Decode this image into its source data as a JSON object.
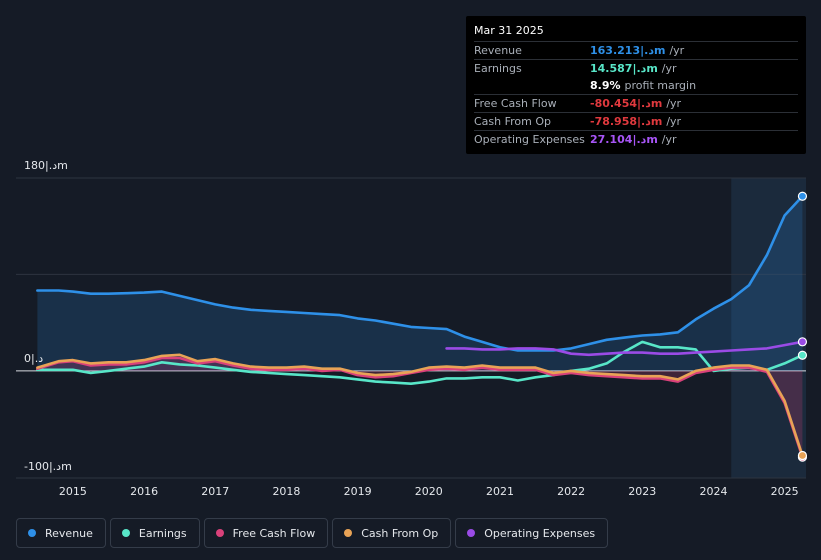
{
  "tooltip": {
    "date": "Mar 31 2025",
    "rows": [
      {
        "label": "Revenue",
        "value": "163.213|.دm",
        "unit": "/yr",
        "color": "#2e90e8"
      },
      {
        "label": "Earnings",
        "value": "14.587|.دm",
        "unit": "/yr",
        "color": "#58e6c8"
      },
      {
        "label": "",
        "value": "8.9%",
        "unit": "profit margin",
        "color": "#ffffff"
      },
      {
        "label": "Free Cash Flow",
        "value": "-80.454|.دm",
        "unit": "/yr",
        "color": "#e0393e"
      },
      {
        "label": "Cash From Op",
        "value": "-78.958|.دm",
        "unit": "/yr",
        "color": "#e0393e"
      },
      {
        "label": "Operating Expenses",
        "value": "27.104|.دm",
        "unit": "/yr",
        "color": "#a855f7"
      }
    ]
  },
  "axis": {
    "y_top": "180|.دm",
    "y_zero": "0|.د",
    "y_bottom": "-100|.دm"
  },
  "legend": [
    {
      "label": "Revenue",
      "color": "#2e90e8"
    },
    {
      "label": "Earnings",
      "color": "#58e6c8"
    },
    {
      "label": "Free Cash Flow",
      "color": "#d9417a"
    },
    {
      "label": "Cash From Op",
      "color": "#e8a356"
    },
    {
      "label": "Operating Expenses",
      "color": "#9a4be6"
    }
  ],
  "chart_data": {
    "type": "line",
    "title": "",
    "units": "|.دm",
    "ylim": [
      -100,
      180
    ],
    "xlim": [
      2014.2,
      2025.3
    ],
    "x_ticks": [
      2015,
      2016,
      2017,
      2018,
      2019,
      2020,
      2021,
      2022,
      2023,
      2024,
      2025
    ],
    "x_tick_labels": [
      "2015",
      "2016",
      "2017",
      "2018",
      "2019",
      "2020",
      "2021",
      "2022",
      "2023",
      "2024",
      "2025"
    ],
    "forecast_start": 2024.25,
    "series": [
      {
        "name": "Revenue",
        "color": "#2e90e8",
        "fill": true,
        "x": [
          2014.5,
          2014.8,
          2015.0,
          2015.25,
          2015.5,
          2015.75,
          2016.0,
          2016.25,
          2016.5,
          2016.75,
          2017.0,
          2017.25,
          2017.5,
          2017.75,
          2018.0,
          2018.25,
          2018.5,
          2018.75,
          2019.0,
          2019.25,
          2019.5,
          2019.75,
          2020.0,
          2020.25,
          2020.5,
          2020.75,
          2021.0,
          2021.25,
          2021.5,
          2021.75,
          2022.0,
          2022.25,
          2022.5,
          2022.75,
          2023.0,
          2023.25,
          2023.5,
          2023.75,
          2024.0,
          2024.25,
          2024.5,
          2024.75,
          2025.0,
          2025.25
        ],
        "y": [
          75,
          75,
          74,
          72,
          72,
          72.5,
          73,
          74,
          70,
          66,
          62,
          59,
          57,
          56,
          55,
          54,
          53,
          52,
          49,
          47,
          44,
          41,
          40,
          39,
          32,
          27,
          22,
          19,
          19,
          19,
          21,
          25,
          29,
          31,
          33,
          34,
          36,
          48,
          58,
          67,
          80,
          108,
          145,
          163
        ]
      },
      {
        "name": "Earnings",
        "color": "#58e6c8",
        "x": [
          2014.5,
          2014.8,
          2015.0,
          2015.25,
          2015.5,
          2015.75,
          2016.0,
          2016.25,
          2016.5,
          2016.75,
          2017.0,
          2017.25,
          2017.5,
          2017.75,
          2018.0,
          2018.25,
          2018.5,
          2018.75,
          2019.0,
          2019.25,
          2019.5,
          2019.75,
          2020.0,
          2020.25,
          2020.5,
          2020.75,
          2021.0,
          2021.25,
          2021.5,
          2021.75,
          2022.0,
          2022.25,
          2022.5,
          2022.75,
          2023.0,
          2023.25,
          2023.5,
          2023.75,
          2024.0,
          2024.25,
          2024.5,
          2024.75,
          2025.0,
          2025.25
        ],
        "y": [
          1,
          1,
          1,
          -2,
          0,
          2,
          4,
          8,
          6,
          5,
          3,
          1,
          -1,
          -2,
          -3,
          -4,
          -5,
          -6,
          -8,
          -10,
          -11,
          -12,
          -10,
          -7,
          -7,
          -6,
          -6,
          -9,
          -6,
          -4,
          0,
          2,
          7,
          18,
          27,
          22,
          22,
          20,
          0,
          2,
          3,
          1,
          7,
          14.6
        ]
      },
      {
        "name": "Free Cash Flow",
        "color": "#d9417a",
        "fill": true,
        "x": [
          2014.5,
          2014.8,
          2015.0,
          2015.25,
          2015.5,
          2015.75,
          2016.0,
          2016.25,
          2016.5,
          2016.75,
          2017.0,
          2017.25,
          2017.5,
          2017.75,
          2018.0,
          2018.25,
          2018.5,
          2018.75,
          2019.0,
          2019.25,
          2019.5,
          2019.75,
          2020.0,
          2020.25,
          2020.5,
          2020.75,
          2021.0,
          2021.25,
          2021.5,
          2021.75,
          2022.0,
          2022.25,
          2022.5,
          2022.75,
          2023.0,
          2023.25,
          2023.5,
          2023.75,
          2024.0,
          2024.25,
          2024.5,
          2024.75,
          2025.0,
          2025.25
        ],
        "y": [
          2,
          8,
          9,
          5,
          6,
          6,
          8,
          12,
          12,
          7,
          9,
          5,
          2,
          1,
          1,
          2,
          0,
          1,
          -4,
          -6,
          -5,
          -2,
          1,
          2,
          1,
          3,
          1,
          1,
          1,
          -4,
          -2,
          -4,
          -5,
          -6,
          -7,
          -7,
          -10,
          -2,
          1,
          3,
          3,
          -1,
          -30,
          -80.5
        ]
      },
      {
        "name": "Cash From Op",
        "color": "#e8a356",
        "x": [
          2014.5,
          2014.8,
          2015.0,
          2015.25,
          2015.5,
          2015.75,
          2016.0,
          2016.25,
          2016.5,
          2016.75,
          2017.0,
          2017.25,
          2017.5,
          2017.75,
          2018.0,
          2018.25,
          2018.5,
          2018.75,
          2019.0,
          2019.25,
          2019.5,
          2019.75,
          2020.0,
          2020.25,
          2020.5,
          2020.75,
          2021.0,
          2021.25,
          2021.5,
          2021.75,
          2022.0,
          2022.25,
          2022.5,
          2022.75,
          2023.0,
          2023.25,
          2023.5,
          2023.75,
          2024.0,
          2024.25,
          2024.5,
          2024.75,
          2025.0,
          2025.25
        ],
        "y": [
          3,
          9,
          10,
          7,
          8,
          8,
          10,
          14,
          15,
          9,
          11,
          7,
          4,
          3,
          3,
          4,
          2,
          2,
          -2,
          -4,
          -3,
          -1,
          3,
          4,
          3,
          5,
          3,
          3,
          3,
          -2,
          0,
          -2,
          -3,
          -4,
          -5,
          -5,
          -8,
          0,
          3,
          5,
          5,
          1,
          -28,
          -79
        ]
      },
      {
        "name": "Operating Expenses",
        "color": "#9a4be6",
        "x": [
          2020.25,
          2020.5,
          2020.75,
          2021.0,
          2021.25,
          2021.5,
          2021.75,
          2022.0,
          2022.25,
          2022.5,
          2022.75,
          2023.0,
          2023.25,
          2023.5,
          2023.75,
          2024.0,
          2024.25,
          2024.5,
          2024.75,
          2025.0,
          2025.25
        ],
        "y": [
          21,
          21,
          20,
          20,
          21,
          21,
          20,
          16,
          15,
          16,
          17,
          17,
          16,
          16,
          17,
          18,
          19,
          20,
          21,
          24,
          27.1
        ]
      }
    ]
  }
}
